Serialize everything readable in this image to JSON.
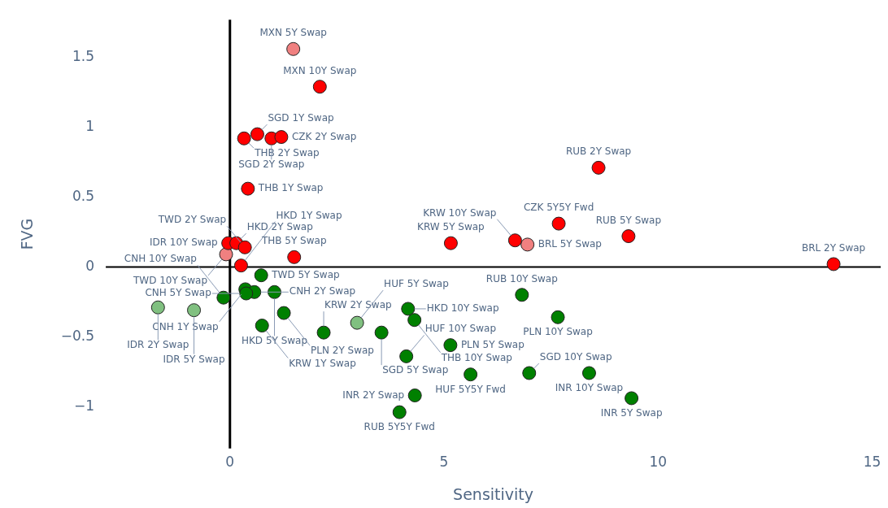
{
  "chart_data": {
    "type": "scatter",
    "xlabel": "Sensitivity",
    "ylabel": "FVG",
    "xlim": [
      -2.9,
      15.2
    ],
    "xticks": [
      0,
      5,
      10,
      15
    ],
    "ylim": [
      -1.3,
      1.77
    ],
    "yticks": [
      {
        "value": -1,
        "label": "−1"
      },
      {
        "value": -0.5,
        "label": "−0.5"
      },
      0,
      0.5,
      1,
      1.5
    ],
    "grid": false,
    "legend": false,
    "marker": "circle",
    "series": [
      {
        "color": "#ff0000",
        "x": [
          2.1,
          0.33,
          0.64,
          0.97,
          1.2,
          0.42,
          -0.04,
          0.15,
          0.35,
          0.26,
          1.5,
          5.16,
          6.66,
          7.68,
          8.61,
          9.31,
          14.1
        ],
        "values": [
          1.29,
          0.92,
          0.95,
          0.92,
          0.93,
          0.56,
          0.17,
          0.17,
          0.14,
          0.01,
          0.07,
          0.17,
          0.19,
          0.31,
          0.71,
          0.22,
          0.02
        ]
      },
      {
        "color": "#f08080",
        "x": [
          1.48,
          -0.09,
          6.95
        ],
        "values": [
          1.56,
          0.09,
          0.16
        ]
      },
      {
        "color": "#008000",
        "x": [
          -0.15,
          0.73,
          0.36,
          0.57,
          1.04,
          0.38,
          0.75,
          1.26,
          2.19,
          3.54,
          4.16,
          4.31,
          4.12,
          5.15,
          5.62,
          4.32,
          3.96,
          6.82,
          7.66,
          6.99,
          8.39,
          9.38
        ],
        "values": [
          -0.22,
          -0.06,
          -0.16,
          -0.18,
          -0.18,
          -0.19,
          -0.42,
          -0.33,
          -0.47,
          -0.47,
          -0.3,
          -0.38,
          -0.64,
          -0.56,
          -0.77,
          -0.92,
          -1.04,
          -0.2,
          -0.36,
          -0.76,
          -0.76,
          -0.94
        ]
      },
      {
        "color": "#80c080",
        "x": [
          -1.68,
          -0.84,
          2.97
        ],
        "values": [
          -0.29,
          -0.31,
          -0.4
        ]
      }
    ],
    "annotations": [
      {
        "text": "MXN 5Y Swap",
        "x": 1.48,
        "y": 1.56
      },
      {
        "text": "MXN 10Y Swap",
        "x": 2.1,
        "y": 1.29
      },
      {
        "text": "THB 2Y Swap",
        "x": 0.33,
        "y": 0.92
      },
      {
        "text": "SGD 1Y Swap",
        "x": 0.64,
        "y": 0.95
      },
      {
        "text": "SGD 2Y Swap",
        "x": 0.97,
        "y": 0.92
      },
      {
        "text": "CZK 2Y Swap",
        "x": 1.2,
        "y": 0.93
      },
      {
        "text": "THB 1Y Swap",
        "x": 0.42,
        "y": 0.56
      },
      {
        "text": "IDR 10Y Swap",
        "x": -0.04,
        "y": 0.17
      },
      {
        "text": "HKD 2Y Swap",
        "x": 0.15,
        "y": 0.17
      },
      {
        "text": "TWD 2Y Swap",
        "x": 0.35,
        "y": 0.14
      },
      {
        "text": "TWD 10Y Swap",
        "x": -0.09,
        "y": 0.09
      },
      {
        "text": "HKD 1Y Swap",
        "x": 0.26,
        "y": 0.01
      },
      {
        "text": "THB 5Y Swap",
        "x": 1.5,
        "y": 0.07
      },
      {
        "text": "KRW 5Y Swap",
        "x": 5.16,
        "y": 0.17
      },
      {
        "text": "KRW 10Y Swap",
        "x": 6.66,
        "y": 0.19
      },
      {
        "text": "BRL 5Y Swap",
        "x": 6.95,
        "y": 0.16
      },
      {
        "text": "CZK 5Y5Y Fwd",
        "x": 7.68,
        "y": 0.31
      },
      {
        "text": "RUB 2Y Swap",
        "x": 8.61,
        "y": 0.71
      },
      {
        "text": "RUB 5Y Swap",
        "x": 9.31,
        "y": 0.22
      },
      {
        "text": "BRL 2Y Swap",
        "x": 14.1,
        "y": 0.02
      },
      {
        "text": "TWD 5Y Swap",
        "x": 0.73,
        "y": -0.06
      },
      {
        "text": "CNH 1Y Swap",
        "x": 0.36,
        "y": -0.16
      },
      {
        "text": "CNH 2Y Swap",
        "x": 0.57,
        "y": -0.18
      },
      {
        "text": "HKD 5Y Swap",
        "x": 1.04,
        "y": -0.18
      },
      {
        "text": "CNH 5Y Swap",
        "x": 0.38,
        "y": -0.19
      },
      {
        "text": "CNH 10Y Swap",
        "x": -0.15,
        "y": -0.22
      },
      {
        "text": "IDR 2Y Swap",
        "x": -1.68,
        "y": -0.29
      },
      {
        "text": "IDR 5Y Swap",
        "x": -0.84,
        "y": -0.31
      },
      {
        "text": "KRW 1Y Swap",
        "x": 0.75,
        "y": -0.42
      },
      {
        "text": "PLN 2Y Swap",
        "x": 1.26,
        "y": -0.33
      },
      {
        "text": "KRW 2Y Swap",
        "x": 2.19,
        "y": -0.47
      },
      {
        "text": "HUF 5Y Swap",
        "x": 2.97,
        "y": -0.4
      },
      {
        "text": "SGD 5Y Swap",
        "x": 3.54,
        "y": -0.47
      },
      {
        "text": "HKD 10Y Swap",
        "x": 4.16,
        "y": -0.3
      },
      {
        "text": "THB 10Y Swap",
        "x": 4.31,
        "y": -0.38
      },
      {
        "text": "HUF 10Y Swap",
        "x": 4.12,
        "y": -0.64
      },
      {
        "text": "PLN 5Y Swap",
        "x": 5.15,
        "y": -0.56
      },
      {
        "text": "HUF 5Y5Y Fwd",
        "x": 5.62,
        "y": -0.77
      },
      {
        "text": "INR 2Y Swap",
        "x": 4.32,
        "y": -0.92
      },
      {
        "text": "RUB 5Y5Y Fwd",
        "x": 3.96,
        "y": -1.04
      },
      {
        "text": "RUB 10Y Swap",
        "x": 6.82,
        "y": -0.2
      },
      {
        "text": "PLN 10Y Swap",
        "x": 7.66,
        "y": -0.36
      },
      {
        "text": "SGD 10Y Swap",
        "x": 6.99,
        "y": -0.76
      },
      {
        "text": "INR 10Y Swap",
        "x": 8.39,
        "y": -0.76
      },
      {
        "text": "INR 5Y Swap",
        "x": 9.38,
        "y": -0.94
      }
    ]
  }
}
